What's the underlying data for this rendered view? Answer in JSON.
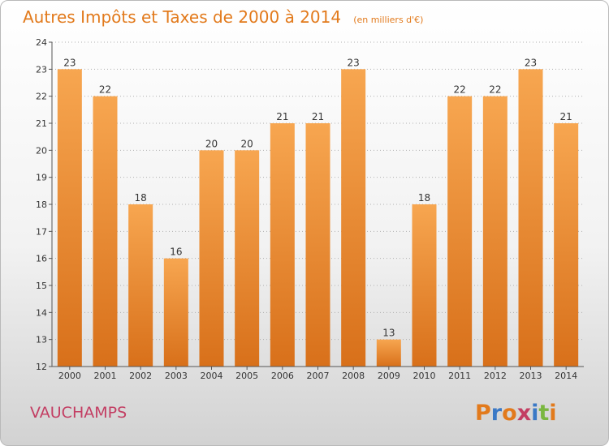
{
  "title": "Autres Impôts et Taxes de 2000 à 2014",
  "unit": "(en milliers d'€)",
  "location": "VAUCHAMPS",
  "logo": "Proxiti",
  "logo_colors": [
    "#e27a1c",
    "#3b79c6",
    "#e27a1c",
    "#c33e63",
    "#3b79c6",
    "#7ab73f",
    "#e27a1c"
  ],
  "chart_data": {
    "type": "bar",
    "categories": [
      "2000",
      "2001",
      "2002",
      "2003",
      "2004",
      "2005",
      "2006",
      "2007",
      "2008",
      "2009",
      "2010",
      "2011",
      "2012",
      "2013",
      "2014"
    ],
    "values": [
      23,
      22,
      18,
      16,
      20,
      20,
      21,
      21,
      23,
      13,
      18,
      22,
      22,
      23,
      21
    ],
    "ylim": [
      12,
      24
    ],
    "yticks": [
      12,
      13,
      14,
      15,
      16,
      17,
      18,
      19,
      20,
      21,
      22,
      23,
      24
    ],
    "grid": "horizontal dotted",
    "colors": {
      "bar_light": "#f7a650",
      "bar_dark": "#d8701a",
      "grid": "#b0b0b0"
    }
  }
}
